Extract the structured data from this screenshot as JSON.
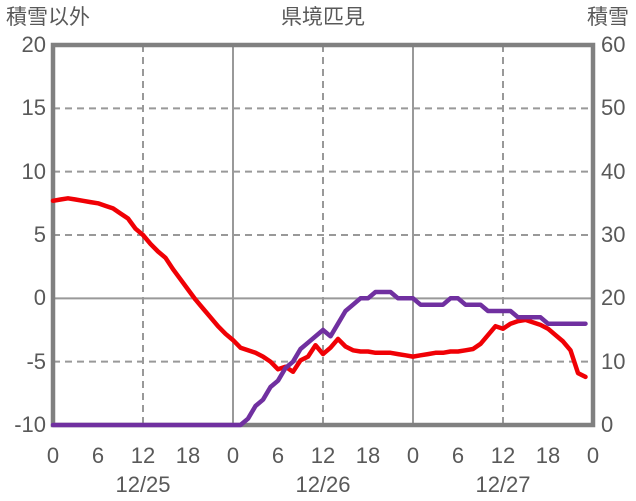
{
  "header": {
    "left_axis_title": "積雪以外",
    "chart_title": "県境匹見",
    "right_axis_title": "積雪"
  },
  "colors": {
    "temperature_line": "#f00005",
    "snow_line": "#7030a0",
    "frame": "#808080",
    "gridline": "#999999",
    "text": "#595959",
    "background": "#ffffff"
  },
  "chart_data": {
    "type": "line",
    "title": "県境匹見",
    "legend": "none",
    "grid": "on",
    "left_axis": {
      "title": "積雪以外",
      "min": -10,
      "max": 20,
      "ticks": [
        "20",
        "15",
        "10",
        "5",
        "0",
        "-5",
        "-10"
      ],
      "tick_values": [
        20,
        15,
        10,
        5,
        0,
        -5,
        -10
      ]
    },
    "right_axis": {
      "title": "積雪",
      "min": 0,
      "max": 60,
      "ticks": [
        "60",
        "50",
        "40",
        "30",
        "20",
        "10",
        "0"
      ],
      "tick_values": [
        60,
        50,
        40,
        30,
        20,
        10,
        0
      ]
    },
    "x_axis": {
      "range_hours": [
        0,
        72
      ],
      "tick_hours": [
        0,
        6,
        12,
        18,
        24,
        30,
        36,
        42,
        48,
        54,
        60,
        66,
        72
      ],
      "tick_labels": [
        "0",
        "6",
        "12",
        "18",
        "0",
        "6",
        "12",
        "18",
        "0",
        "6",
        "12",
        "18",
        "0"
      ],
      "date_labels": [
        {
          "label": "12/25",
          "center_hour": 12
        },
        {
          "label": "12/26",
          "center_hour": 36
        },
        {
          "label": "12/27",
          "center_hour": 60
        }
      ]
    },
    "y_gridlines": {
      "dashed": [
        15,
        10,
        5,
        -5
      ],
      "solid": [
        0
      ]
    },
    "x_gridlines": {
      "dashed_hours": [
        12,
        36,
        60
      ],
      "solid_hours": [
        24,
        48
      ]
    },
    "series": [
      {
        "name": "積雪以外",
        "axis": "left",
        "color": "#f00005",
        "start_hour": 0,
        "interval_hours": 1,
        "values": [
          7.7,
          7.8,
          7.9,
          7.8,
          7.7,
          7.6,
          7.5,
          7.3,
          7.1,
          6.7,
          6.3,
          5.5,
          5.0,
          4.3,
          3.7,
          3.2,
          2.3,
          1.5,
          0.7,
          -0.1,
          -0.8,
          -1.5,
          -2.2,
          -2.8,
          -3.3,
          -3.9,
          -4.1,
          -4.3,
          -4.6,
          -5.0,
          -5.6,
          -5.4,
          -5.8,
          -4.9,
          -4.6,
          -3.7,
          -4.4,
          -3.9,
          -3.2,
          -3.8,
          -4.1,
          -4.2,
          -4.2,
          -4.3,
          -4.3,
          -4.3,
          -4.4,
          -4.5,
          -4.6,
          -4.5,
          -4.4,
          -4.3,
          -4.3,
          -4.2,
          -4.2,
          -4.1,
          -4.0,
          -3.6,
          -2.9,
          -2.2,
          -2.4,
          -2.0,
          -1.8,
          -1.7,
          -1.9,
          -2.1,
          -2.4,
          -2.9,
          -3.4,
          -4.1,
          -5.9,
          -6.2
        ]
      },
      {
        "name": "積雪",
        "axis": "right",
        "color": "#7030a0",
        "start_hour": 0,
        "interval_hours": 1,
        "values": [
          0,
          0,
          0,
          0,
          0,
          0,
          0,
          0,
          0,
          0,
          0,
          0,
          0,
          0,
          0,
          0,
          0,
          0,
          0,
          0,
          0,
          0,
          0,
          0,
          0,
          0,
          1,
          3,
          4,
          6,
          7,
          9,
          10,
          12,
          13,
          14,
          15,
          14,
          16,
          18,
          19,
          20,
          20,
          21,
          21,
          21,
          20,
          20,
          20,
          19,
          19,
          19,
          19,
          20,
          20,
          19,
          19,
          19,
          18,
          18,
          18,
          18,
          17,
          17,
          17,
          17,
          16,
          16,
          16,
          16,
          16,
          16
        ]
      }
    ]
  }
}
